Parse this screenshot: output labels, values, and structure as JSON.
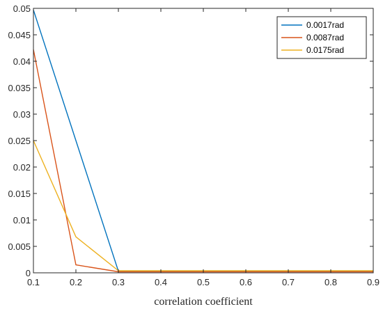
{
  "chart_data": {
    "type": "line",
    "title": "",
    "xlabel": "correlation coefficient",
    "ylabel": "",
    "xlim": [
      0.1,
      0.9
    ],
    "ylim": [
      0,
      0.05
    ],
    "x_ticks": [
      "0.1",
      "0.2",
      "0.3",
      "0.4",
      "0.5",
      "0.6",
      "0.7",
      "0.8",
      "0.9"
    ],
    "y_ticks": [
      "0",
      "0.005",
      "0.01",
      "0.015",
      "0.02",
      "0.025",
      "0.03",
      "0.035",
      "0.04",
      "0.045",
      "0.05"
    ],
    "grid": false,
    "legend_position": "top-right",
    "x": [
      0.1,
      0.2,
      0.3,
      0.4,
      0.5,
      0.6,
      0.7,
      0.8,
      0.9
    ],
    "series": [
      {
        "name": "0.0017rad",
        "color": "#0072BD",
        "values": [
          0.0497,
          0.025,
          0.0003,
          0.0003,
          0.0003,
          0.0003,
          0.0003,
          0.0003,
          0.0003
        ]
      },
      {
        "name": "0.0087rad",
        "color": "#D95319",
        "values": [
          0.0422,
          0.0015,
          0.0002,
          0.0002,
          0.0002,
          0.0002,
          0.0002,
          0.0002,
          0.0002
        ]
      },
      {
        "name": "0.0175rad",
        "color": "#EDB120",
        "values": [
          0.025,
          0.0068,
          0.0004,
          0.0004,
          0.0004,
          0.0004,
          0.0004,
          0.0004,
          0.0004
        ]
      }
    ]
  }
}
